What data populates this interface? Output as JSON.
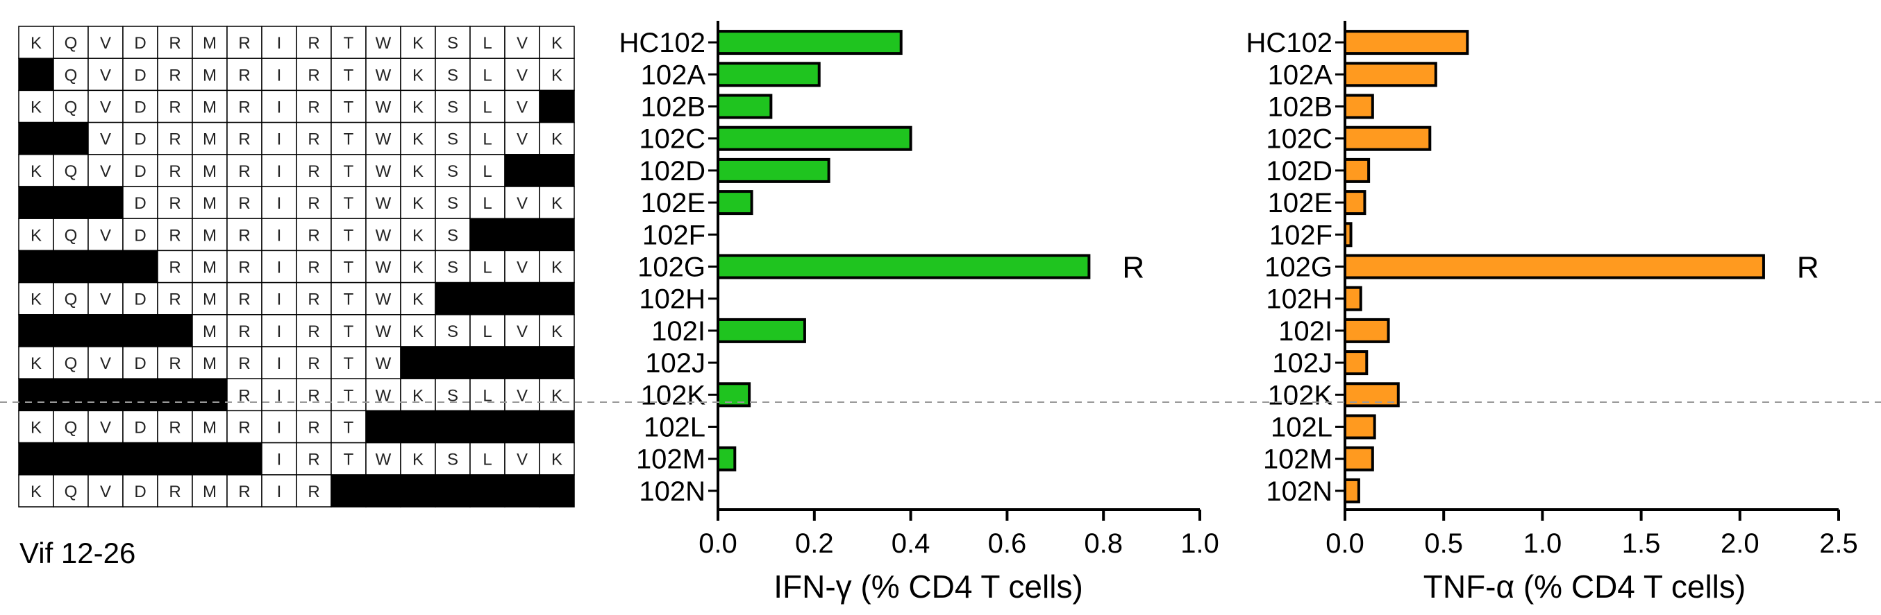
{
  "peptide_panel": {
    "caption": "Vif 12-26",
    "sequence": [
      "K",
      "Q",
      "V",
      "D",
      "R",
      "M",
      "R",
      "I",
      "R",
      "T",
      "W",
      "K",
      "S",
      "L",
      "V",
      "K"
    ],
    "rows": [
      {
        "start": 0,
        "end": 16
      },
      {
        "start": 1,
        "end": 16
      },
      {
        "start": 0,
        "end": 15
      },
      {
        "start": 2,
        "end": 16
      },
      {
        "start": 0,
        "end": 14
      },
      {
        "start": 3,
        "end": 16
      },
      {
        "start": 0,
        "end": 13
      },
      {
        "start": 4,
        "end": 16
      },
      {
        "start": 0,
        "end": 12
      },
      {
        "start": 5,
        "end": 16
      },
      {
        "start": 0,
        "end": 11
      },
      {
        "start": 6,
        "end": 16
      },
      {
        "start": 0,
        "end": 10
      },
      {
        "start": 7,
        "end": 16
      },
      {
        "start": 0,
        "end": 9
      }
    ]
  },
  "chart_data": [
    {
      "type": "bar",
      "orientation": "horizontal",
      "categories": [
        "HC102",
        "102A",
        "102B",
        "102C",
        "102D",
        "102E",
        "102F",
        "102G",
        "102H",
        "102I",
        "102J",
        "102K",
        "102L",
        "102M",
        "102N"
      ],
      "values": [
        0.38,
        0.21,
        0.11,
        0.4,
        0.23,
        0.07,
        0.0,
        0.77,
        0.0,
        0.18,
        0.0,
        0.065,
        0.0,
        0.035,
        0.0
      ],
      "xlabel": "IFN-γ (% CD4 T cells)",
      "xlim": [
        0,
        1.0
      ],
      "xticks": [
        0.0,
        0.2,
        0.4,
        0.6,
        0.8,
        1.0
      ],
      "xtick_labels": [
        "0.0",
        "0.2",
        "0.4",
        "0.6",
        "0.8",
        "1.0"
      ],
      "color": "#1fc41f",
      "annotation": {
        "category": "102G",
        "text": "R"
      }
    },
    {
      "type": "bar",
      "orientation": "horizontal",
      "categories": [
        "HC102",
        "102A",
        "102B",
        "102C",
        "102D",
        "102E",
        "102F",
        "102G",
        "102H",
        "102I",
        "102J",
        "102K",
        "102L",
        "102M",
        "102N"
      ],
      "values": [
        0.62,
        0.46,
        0.14,
        0.43,
        0.12,
        0.1,
        0.03,
        2.12,
        0.08,
        0.22,
        0.11,
        0.27,
        0.15,
        0.14,
        0.07
      ],
      "xlabel": "TNF-α (% CD4 T cells)",
      "xlim": [
        0,
        2.5
      ],
      "xticks": [
        0.0,
        0.5,
        1.0,
        1.5,
        2.0,
        2.5
      ],
      "xtick_labels": [
        "0.0",
        "0.5",
        "1.0",
        "1.5",
        "2.0",
        "2.5"
      ],
      "color": "#ff9a1f",
      "annotation": {
        "category": "102G",
        "text": "R"
      }
    }
  ]
}
